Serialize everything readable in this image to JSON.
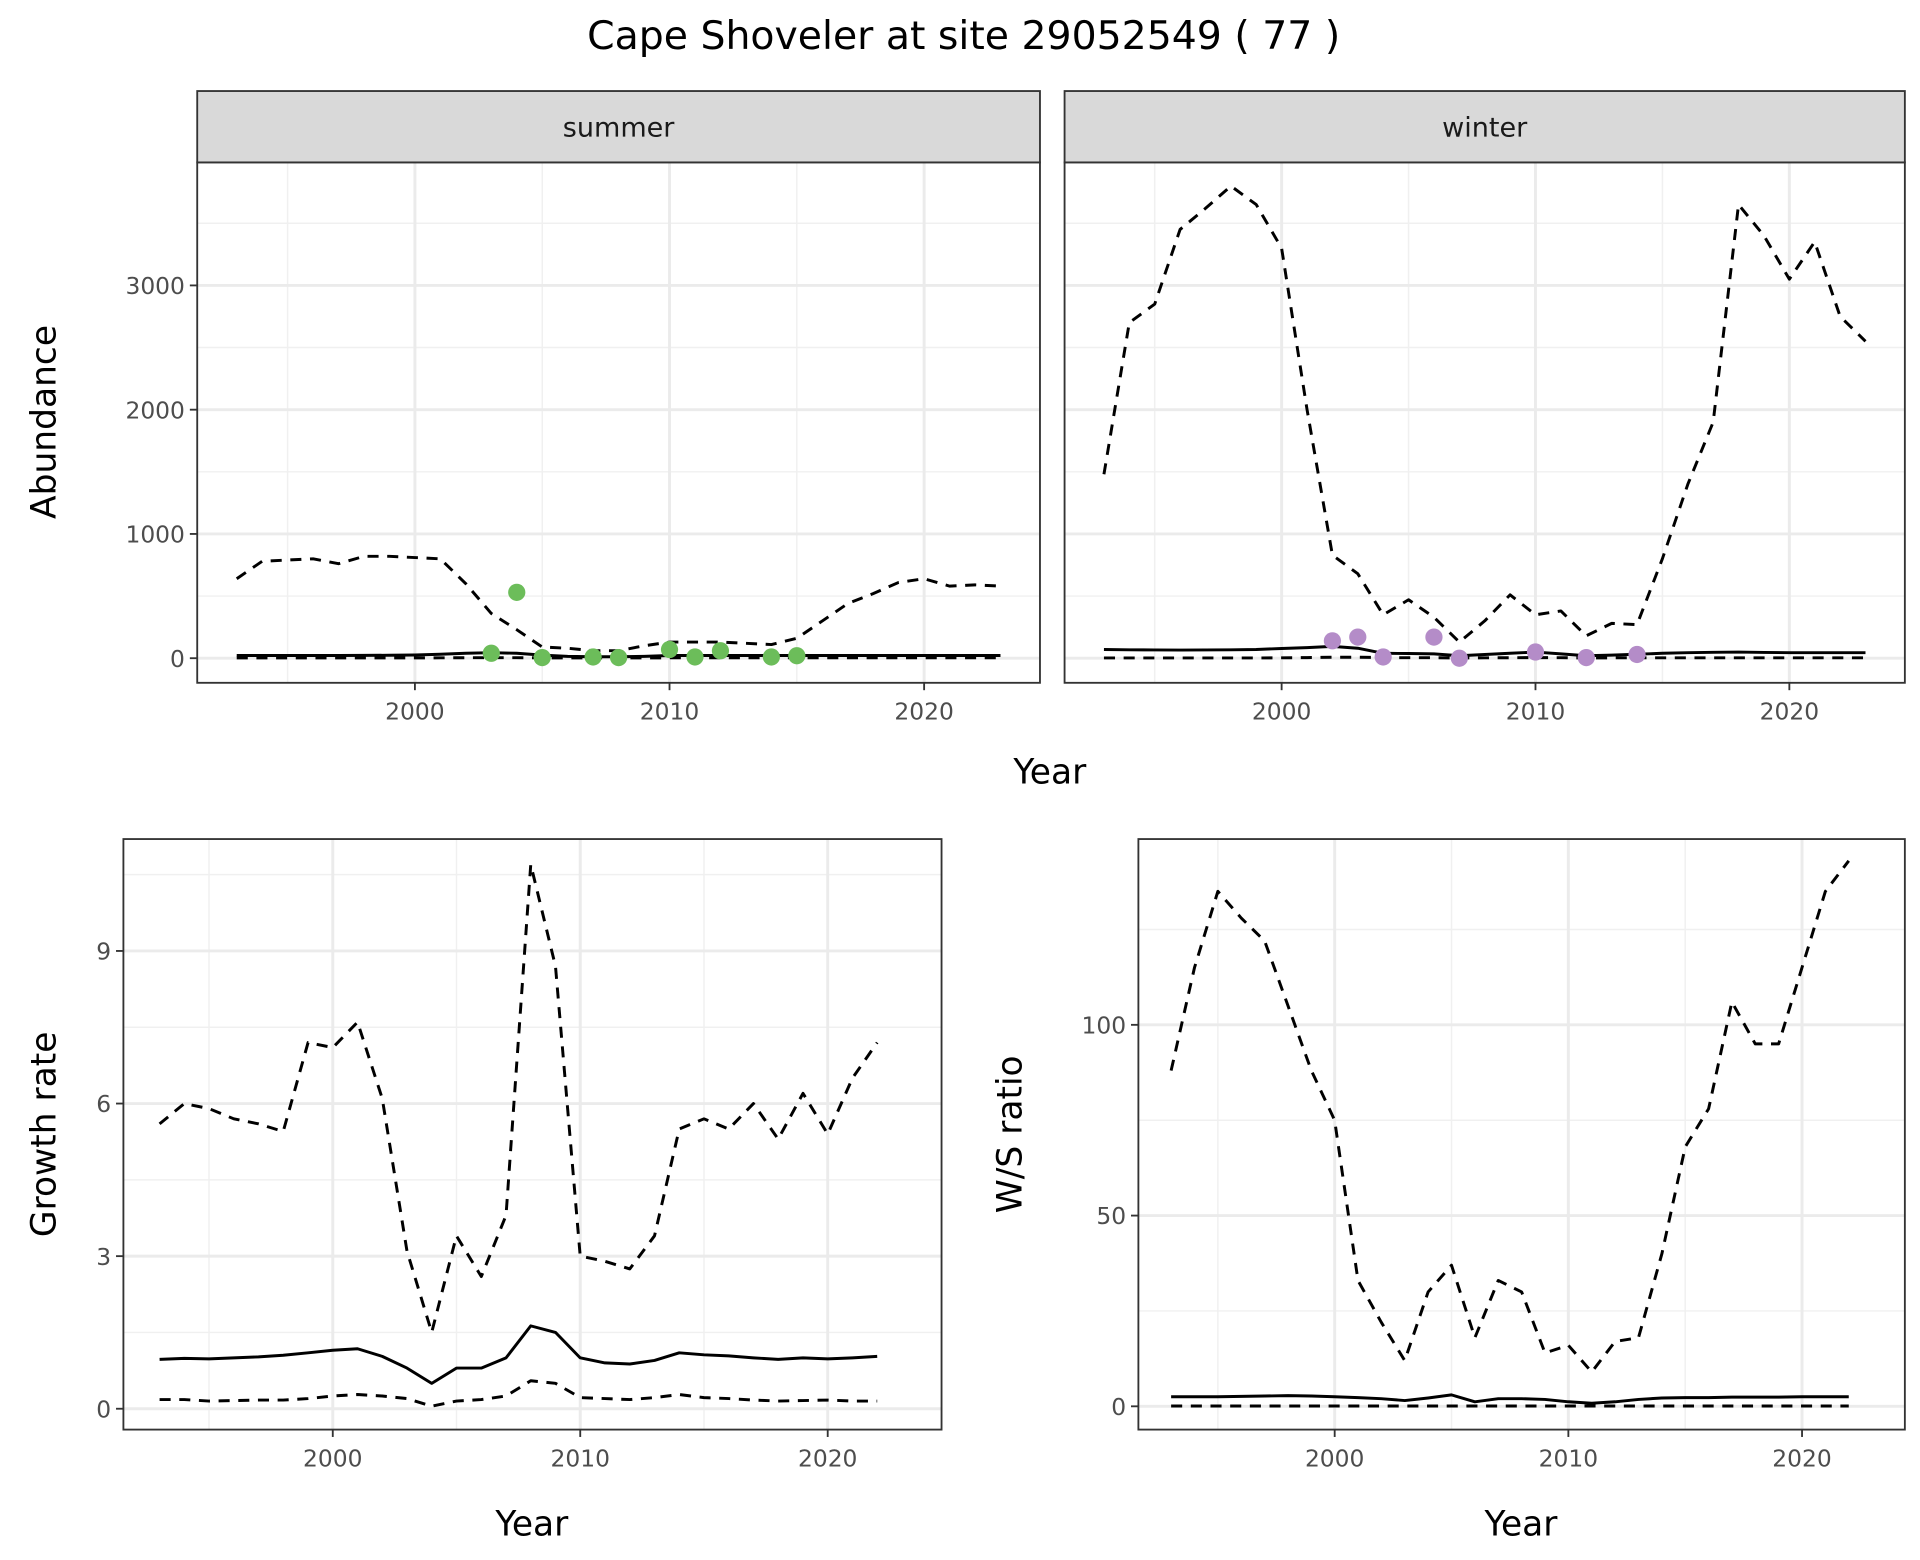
{
  "chart_data": {
    "title": "Cape Shoveler at site 29052549 ( 77 )",
    "panels": [
      {
        "id": "summer",
        "type": "line",
        "strip": "summer",
        "xlabel": "Year",
        "ylabel": "Abundance",
        "xlim": [
          1991.45,
          2024.55
        ],
        "ylim": [
          -198,
          3990
        ],
        "xticks": [
          2000,
          2010,
          2020
        ],
        "xticks_minor": [
          1995,
          2005,
          2015
        ],
        "yticks": [
          0,
          1000,
          2000,
          3000
        ],
        "yticks_minor": [
          500,
          1500,
          2500,
          3500
        ],
        "x": [
          1993,
          1994,
          1995,
          1996,
          1997,
          1998,
          1999,
          2000,
          2001,
          2002,
          2003,
          2004,
          2005,
          2006,
          2007,
          2008,
          2009,
          2010,
          2011,
          2012,
          2013,
          2014,
          2015,
          2016,
          2017,
          2018,
          2019,
          2020,
          2021,
          2022,
          2023
        ],
        "series": [
          {
            "name": "upper",
            "style": "dashed",
            "values": [
              640,
              780,
              790,
              800,
              760,
              820,
              820,
              810,
              800,
              600,
              360,
              230,
              90,
              80,
              60,
              60,
              100,
              130,
              130,
              130,
              120,
              110,
              160,
              300,
              440,
              520,
              610,
              640,
              580,
              590,
              580
            ]
          },
          {
            "name": "estimate",
            "style": "solid",
            "values": [
              22,
              22,
              22,
              22,
              22,
              23,
              24,
              26,
              32,
              40,
              45,
              40,
              25,
              15,
              12,
              12,
              15,
              22,
              22,
              22,
              22,
              22,
              22,
              22,
              22,
              22,
              22,
              22,
              22,
              22,
              22
            ]
          },
          {
            "name": "lower",
            "style": "dashed",
            "values": [
              2,
              2,
              2,
              2,
              2,
              2,
              2,
              2,
              3,
              4,
              4,
              4,
              3,
              2,
              2,
              2,
              2,
              3,
              3,
              3,
              3,
              3,
              3,
              3,
              3,
              3,
              3,
              3,
              3,
              3,
              3
            ]
          }
        ],
        "points": {
          "color": "#6cbd5a",
          "x": [
            2003,
            2004,
            2005,
            2007,
            2008,
            2010,
            2011,
            2012,
            2014,
            2015
          ],
          "y": [
            40,
            530,
            5,
            10,
            5,
            70,
            10,
            60,
            10,
            20
          ]
        }
      },
      {
        "id": "winter",
        "type": "line",
        "strip": "winter",
        "xlabel": "Year",
        "ylabel": "",
        "xlim": [
          1991.45,
          2024.55
        ],
        "ylim": [
          -198,
          3990
        ],
        "xticks": [
          2000,
          2010,
          2020
        ],
        "xticks_minor": [
          1995,
          2005,
          2015
        ],
        "yticks": [
          0,
          1000,
          2000,
          3000
        ],
        "yticks_minor": [
          500,
          1500,
          2500,
          3500
        ],
        "x": [
          1993,
          1994,
          1995,
          1996,
          1997,
          1998,
          1999,
          2000,
          2001,
          2002,
          2003,
          2004,
          2005,
          2006,
          2007,
          2008,
          2009,
          2010,
          2011,
          2012,
          2013,
          2014,
          2015,
          2016,
          2017,
          2018,
          2019,
          2020,
          2021,
          2022,
          2023
        ],
        "series": [
          {
            "name": "upper",
            "style": "dashed",
            "values": [
              1480,
              2700,
              2850,
              3450,
              3620,
              3800,
              3650,
              3300,
              2000,
              830,
              680,
              350,
              470,
              330,
              130,
              300,
              510,
              350,
              380,
              180,
              280,
              270,
              800,
              1400,
              1900,
              3650,
              3400,
              3050,
              3350,
              2750,
              2550
            ]
          },
          {
            "name": "estimate",
            "style": "solid",
            "values": [
              70,
              67,
              66,
              65,
              66,
              67,
              70,
              78,
              85,
              95,
              80,
              40,
              38,
              35,
              20,
              30,
              40,
              50,
              35,
              20,
              25,
              32,
              40,
              45,
              48,
              50,
              47,
              45,
              45,
              45,
              45
            ]
          },
          {
            "name": "lower",
            "style": "dashed",
            "values": [
              2,
              2,
              2,
              2,
              2,
              2,
              2,
              3,
              5,
              8,
              8,
              5,
              4,
              4,
              2,
              3,
              4,
              5,
              4,
              2,
              3,
              3,
              3,
              3,
              3,
              3,
              3,
              3,
              3,
              3,
              3
            ]
          }
        ],
        "points": {
          "color": "#b48cc8",
          "x": [
            2002,
            2003,
            2004,
            2006,
            2007,
            2010,
            2012,
            2014
          ],
          "y": [
            140,
            170,
            10,
            170,
            0,
            50,
            5,
            30
          ]
        }
      },
      {
        "id": "growth",
        "type": "line",
        "strip": "",
        "xlabel": "Year",
        "ylabel": "Growth rate",
        "xlim": [
          1991.54,
          2024.6
        ],
        "ylim": [
          -0.41,
          11.2
        ],
        "xticks": [
          2000,
          2010,
          2020
        ],
        "xticks_minor": [
          1995,
          2005,
          2015
        ],
        "yticks": [
          0,
          3,
          6,
          9
        ],
        "yticks_minor": [
          1.5,
          4.5,
          7.5,
          10.5
        ],
        "x": [
          1993,
          1994,
          1995,
          1996,
          1997,
          1998,
          1999,
          2000,
          2001,
          2002,
          2003,
          2004,
          2005,
          2006,
          2007,
          2008,
          2009,
          2010,
          2011,
          2012,
          2013,
          2014,
          2015,
          2016,
          2017,
          2018,
          2019,
          2020,
          2021,
          2022
        ],
        "series": [
          {
            "name": "upper",
            "style": "dashed",
            "values": [
              5.6,
              6.0,
              5.9,
              5.7,
              5.6,
              5.45,
              7.2,
              7.1,
              7.6,
              6.1,
              3.1,
              1.5,
              3.4,
              2.6,
              3.8,
              10.7,
              8.7,
              3.0,
              2.9,
              2.75,
              3.4,
              5.5,
              5.7,
              5.5,
              6.0,
              5.3,
              6.2,
              5.4,
              6.5,
              7.2
            ]
          },
          {
            "name": "estimate",
            "style": "solid",
            "values": [
              0.97,
              0.99,
              0.98,
              1.0,
              1.02,
              1.05,
              1.1,
              1.15,
              1.18,
              1.03,
              0.8,
              0.5,
              0.8,
              0.8,
              1.0,
              1.63,
              1.5,
              1.0,
              0.9,
              0.88,
              0.95,
              1.1,
              1.06,
              1.04,
              1.0,
              0.97,
              1.0,
              0.98,
              1.0,
              1.03
            ]
          },
          {
            "name": "lower",
            "style": "dashed",
            "values": [
              0.18,
              0.18,
              0.15,
              0.16,
              0.17,
              0.17,
              0.2,
              0.25,
              0.28,
              0.25,
              0.2,
              0.05,
              0.15,
              0.18,
              0.25,
              0.55,
              0.5,
              0.22,
              0.2,
              0.18,
              0.22,
              0.28,
              0.22,
              0.2,
              0.17,
              0.15,
              0.16,
              0.17,
              0.15,
              0.15
            ]
          }
        ]
      },
      {
        "id": "ratio",
        "type": "line",
        "strip": "",
        "xlabel": "Year",
        "ylabel": "W/S ratio",
        "xlim": [
          1991.6,
          2024.4
        ],
        "ylim": [
          -6.1,
          148.7
        ],
        "xticks": [
          2000,
          2010,
          2020
        ],
        "xticks_minor": [
          1995,
          2005,
          2015
        ],
        "yticks": [
          0,
          50,
          100
        ],
        "yticks_minor": [
          25,
          75,
          125
        ],
        "x": [
          1993,
          1994,
          1995,
          1996,
          1997,
          1998,
          1999,
          2000,
          2001,
          2002,
          2003,
          2004,
          2005,
          2006,
          2007,
          2008,
          2009,
          2010,
          2011,
          2012,
          2013,
          2014,
          2015,
          2016,
          2017,
          2018,
          2019,
          2020,
          2021,
          2022
        ],
        "series": [
          {
            "name": "upper",
            "style": "dashed",
            "values": [
              88,
              115,
              135,
              128,
              122,
              105,
              88,
              75,
              33,
              22,
              12,
              30,
              37,
              18,
              33,
              30,
              14,
              16,
              9,
              17,
              18,
              40,
              68,
              78,
              106,
              95,
              95,
              115,
              135,
              143
            ]
          },
          {
            "name": "estimate",
            "style": "solid",
            "values": [
              2.5,
              2.5,
              2.5,
              2.6,
              2.7,
              2.8,
              2.7,
              2.5,
              2.3,
              2.0,
              1.5,
              2.2,
              3.0,
              1.2,
              2.0,
              2.0,
              1.8,
              1.2,
              0.8,
              1.2,
              1.8,
              2.2,
              2.3,
              2.3,
              2.4,
              2.4,
              2.4,
              2.5,
              2.5,
              2.5
            ]
          },
          {
            "name": "lower",
            "style": "dashed",
            "values": [
              0.1,
              0.1,
              0.1,
              0.1,
              0.1,
              0.1,
              0.1,
              0.1,
              0.1,
              0.1,
              0.1,
              0.1,
              0.1,
              0.1,
              0.1,
              0.1,
              0.1,
              0.1,
              0.1,
              0.1,
              0.1,
              0.1,
              0.1,
              0.1,
              0.1,
              0.1,
              0.1,
              0.1,
              0.1,
              0.1
            ]
          }
        ]
      }
    ],
    "top_xlabel": "Year"
  }
}
